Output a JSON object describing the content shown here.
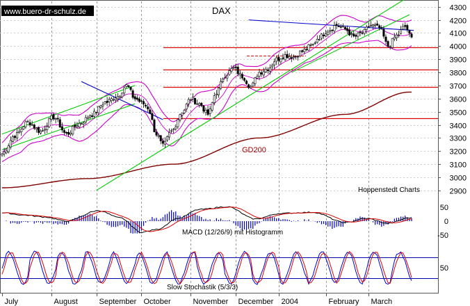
{
  "header": {
    "source": "www.buero-dr-schulz.de",
    "title": "DAX"
  },
  "annotations": {
    "gd200": "GD200",
    "hoppenstedt": "Hoppenstedt Charts",
    "macd": "MACD (12/26/9) mit Histogramm",
    "stochastic": "Slow Stochastik (5/3/3)"
  },
  "colors": {
    "price": "#000000",
    "bollinger": "#cc00cc",
    "ma200": "#800000",
    "support": "#dd0000",
    "trend_up": "#00cc00",
    "trend_down": "#0000cc",
    "macd": "#000000",
    "signal": "#dd0000",
    "histogram": "#0000cc",
    "stoch_k": "#0000cc",
    "stoch_d": "#dd0000",
    "grid": "#999999"
  },
  "chart_data": {
    "type": "candlestick",
    "title": "DAX",
    "period": "July 2003 – March 2004 (daily)",
    "months": [
      "July",
      "August",
      "September",
      "October",
      "November",
      "December",
      "2004",
      "February",
      "March"
    ],
    "price_axis": {
      "ticks": [
        2900,
        3000,
        3100,
        3200,
        3300,
        3400,
        3500,
        3600,
        3700,
        3800,
        3900,
        4000,
        4100,
        4200,
        4300
      ],
      "labels": [
        "2900",
        "3000",
        "3100",
        "3200",
        "3300",
        "3400",
        "3500",
        "3600",
        "3700",
        "3800",
        "3900",
        "4000",
        "4100",
        "4200",
        "4300"
      ],
      "range": [
        2830,
        4320
      ]
    },
    "close_anchors": [
      [
        0,
        3180
      ],
      [
        6,
        3320
      ],
      [
        12,
        3420
      ],
      [
        18,
        3350
      ],
      [
        24,
        3460
      ],
      [
        30,
        3330
      ],
      [
        36,
        3410
      ],
      [
        42,
        3480
      ],
      [
        48,
        3570
      ],
      [
        54,
        3620
      ],
      [
        58,
        3700
      ],
      [
        62,
        3600
      ],
      [
        66,
        3560
      ],
      [
        68,
        3530
      ],
      [
        72,
        3330
      ],
      [
        75,
        3240
      ],
      [
        79,
        3350
      ],
      [
        84,
        3500
      ],
      [
        88,
        3600
      ],
      [
        92,
        3560
      ],
      [
        96,
        3480
      ],
      [
        100,
        3650
      ],
      [
        104,
        3780
      ],
      [
        108,
        3830
      ],
      [
        112,
        3770
      ],
      [
        116,
        3690
      ],
      [
        120,
        3800
      ],
      [
        124,
        3830
      ],
      [
        128,
        3900
      ],
      [
        132,
        3930
      ],
      [
        136,
        3920
      ],
      [
        140,
        3960
      ],
      [
        144,
        4000
      ],
      [
        148,
        4070
      ],
      [
        152,
        4120
      ],
      [
        156,
        4160
      ],
      [
        160,
        4130
      ],
      [
        164,
        4070
      ],
      [
        168,
        4100
      ],
      [
        172,
        4160
      ],
      [
        176,
        4140
      ],
      [
        180,
        4000
      ],
      [
        184,
        4080
      ],
      [
        188,
        4150
      ],
      [
        191,
        4060
      ]
    ],
    "horizontal_levels": [
      3450,
      3690,
      3820,
      3990
    ],
    "short_level": 3930,
    "trend_up_lines": [
      [
        [
          0,
          3330
        ],
        [
          62,
          3700
        ]
      ],
      [
        [
          0,
          3210
        ],
        [
          62,
          3560
        ]
      ],
      [
        [
          44,
          2900
        ],
        [
          190,
          4380
        ]
      ],
      [
        [
          135,
          3800
        ],
        [
          190,
          4240
        ]
      ]
    ],
    "trend_down_lines": [
      [
        [
          37,
          3730
        ],
        [
          75,
          3440
        ]
      ],
      [
        [
          115,
          4200
        ],
        [
          192,
          4120
        ]
      ]
    ],
    "gd200_anchors": [
      [
        0,
        2920
      ],
      [
        40,
        2990
      ],
      [
        80,
        3100
      ],
      [
        120,
        3300
      ],
      [
        160,
        3480
      ],
      [
        190,
        3650
      ]
    ],
    "macd_axis": {
      "ticks": [
        50,
        0,
        -50
      ],
      "labels": [
        "50",
        "0",
        "-50"
      ],
      "range": [
        -80,
        75
      ]
    },
    "macd_anchors": [
      [
        0,
        30
      ],
      [
        10,
        22
      ],
      [
        20,
        15
      ],
      [
        30,
        0
      ],
      [
        45,
        38
      ],
      [
        55,
        12
      ],
      [
        65,
        -40
      ],
      [
        72,
        -30
      ],
      [
        82,
        10
      ],
      [
        92,
        42
      ],
      [
        105,
        52
      ],
      [
        118,
        8
      ],
      [
        130,
        28
      ],
      [
        145,
        32
      ],
      [
        160,
        -5
      ],
      [
        170,
        10
      ],
      [
        180,
        -8
      ],
      [
        190,
        12
      ]
    ],
    "stoch_axis": {
      "ticks": [
        50
      ],
      "labels": [
        "50"
      ],
      "range": [
        0,
        100
      ],
      "bands": [
        20,
        80
      ]
    },
    "stoch_cycle": 13,
    "bollinger_width": 110
  }
}
